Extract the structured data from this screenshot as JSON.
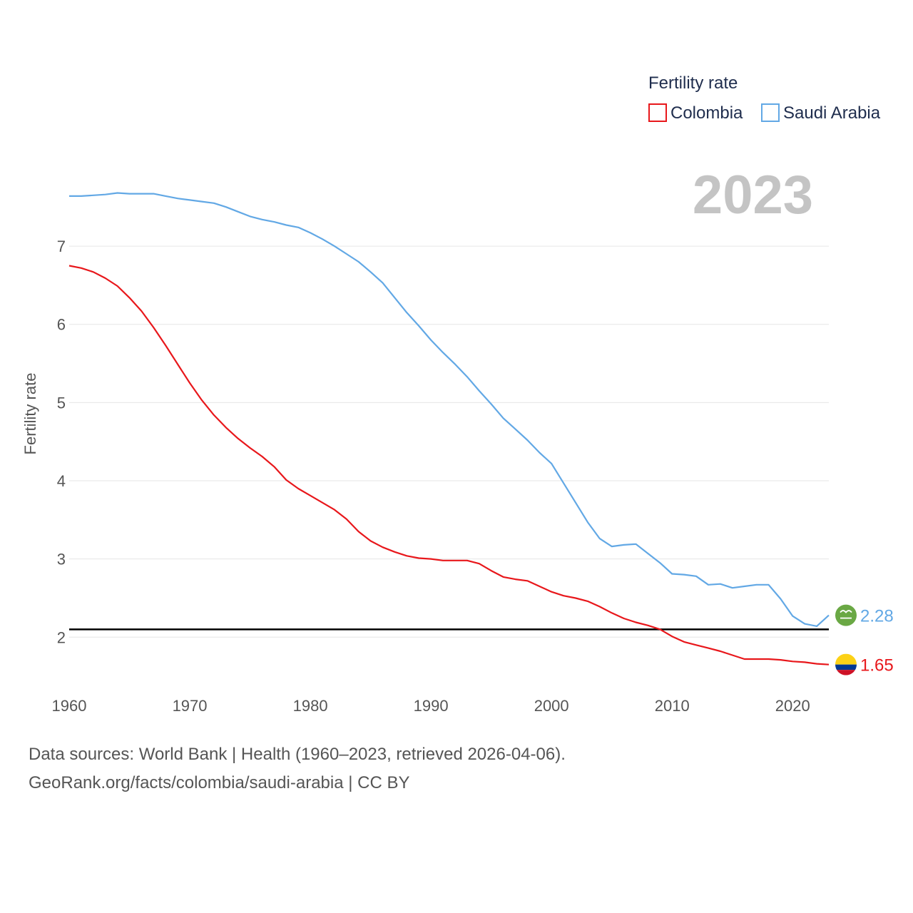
{
  "legend": {
    "title": "Fertility rate",
    "items": [
      {
        "name": "Colombia",
        "color": "#e8171b"
      },
      {
        "name": "Saudi Arabia",
        "color": "#62a8e5"
      }
    ]
  },
  "year_display": "2023",
  "footer": {
    "line1": "Data sources: World Bank | Health (1960–2023, retrieved 2026-04-06).",
    "line2": "GeoRank.org/facts/colombia/saudi-arabia | CC BY"
  },
  "chart_data": {
    "type": "line",
    "title": "Fertility rate",
    "xlabel": "",
    "ylabel": "Fertility rate",
    "xlim": [
      1960,
      2023
    ],
    "ylim": [
      1.2,
      8.2
    ],
    "grid": true,
    "x_ticks": [
      "1960",
      "1970",
      "1980",
      "1990",
      "2000",
      "2010",
      "2020"
    ],
    "y_ticks": [
      "2",
      "3",
      "4",
      "5",
      "6",
      "7"
    ],
    "reference_line": {
      "value": 2.1,
      "color": "#000000"
    },
    "x": [
      1960,
      1961,
      1962,
      1963,
      1964,
      1965,
      1966,
      1967,
      1968,
      1969,
      1970,
      1971,
      1972,
      1973,
      1974,
      1975,
      1976,
      1977,
      1978,
      1979,
      1980,
      1981,
      1982,
      1983,
      1984,
      1985,
      1986,
      1987,
      1988,
      1989,
      1990,
      1991,
      1992,
      1993,
      1994,
      1995,
      1996,
      1997,
      1998,
      1999,
      2000,
      2001,
      2002,
      2003,
      2004,
      2005,
      2006,
      2007,
      2008,
      2009,
      2010,
      2011,
      2012,
      2013,
      2014,
      2015,
      2016,
      2017,
      2018,
      2019,
      2020,
      2021,
      2022,
      2023
    ],
    "series": [
      {
        "name": "Colombia",
        "color": "#e8171b",
        "end_label": "1.65",
        "values": [
          6.75,
          6.72,
          6.67,
          6.59,
          6.49,
          6.34,
          6.17,
          5.96,
          5.73,
          5.49,
          5.25,
          5.03,
          4.84,
          4.68,
          4.54,
          4.42,
          4.31,
          4.18,
          4.01,
          3.9,
          3.81,
          3.72,
          3.63,
          3.51,
          3.35,
          3.23,
          3.15,
          3.09,
          3.04,
          3.01,
          3.0,
          2.98,
          2.98,
          2.98,
          2.94,
          2.85,
          2.77,
          2.74,
          2.72,
          2.65,
          2.58,
          2.53,
          2.5,
          2.46,
          2.39,
          2.31,
          2.24,
          2.19,
          2.15,
          2.1,
          2.01,
          1.94,
          1.9,
          1.86,
          1.82,
          1.77,
          1.72,
          1.72,
          1.72,
          1.71,
          1.69,
          1.68,
          1.66,
          1.65
        ]
      },
      {
        "name": "Saudi Arabia",
        "color": "#62a8e5",
        "end_label": "2.28",
        "values": [
          7.64,
          7.64,
          7.65,
          7.66,
          7.68,
          7.67,
          7.67,
          7.67,
          7.64,
          7.61,
          7.59,
          7.57,
          7.55,
          7.5,
          7.44,
          7.38,
          7.34,
          7.31,
          7.27,
          7.24,
          7.17,
          7.09,
          7.0,
          6.9,
          6.8,
          6.67,
          6.53,
          6.34,
          6.15,
          5.98,
          5.8,
          5.64,
          5.49,
          5.33,
          5.15,
          4.98,
          4.8,
          4.66,
          4.52,
          4.36,
          4.22,
          3.97,
          3.72,
          3.47,
          3.26,
          3.16,
          3.18,
          3.19,
          3.07,
          2.95,
          2.81,
          2.8,
          2.78,
          2.67,
          2.68,
          2.63,
          2.65,
          2.67,
          2.67,
          2.49,
          2.27,
          2.17,
          2.14,
          2.28
        ]
      }
    ]
  }
}
